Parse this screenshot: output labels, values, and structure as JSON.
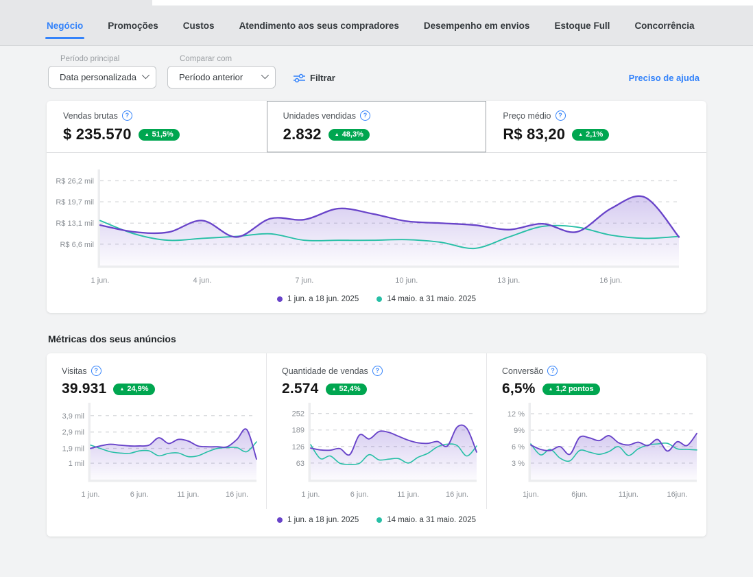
{
  "colors": {
    "purple": "#6843c9",
    "teal": "#27bfa6",
    "green": "#00a650",
    "blue": "#3483fa"
  },
  "icons": {
    "up_arrow": "▲",
    "help": "?"
  },
  "tabs": [
    {
      "label": "Negócio",
      "active": true
    },
    {
      "label": "Promoções",
      "active": false
    },
    {
      "label": "Custos",
      "active": false
    },
    {
      "label": "Atendimento aos seus compradores",
      "active": false
    },
    {
      "label": "Desempenho em envios",
      "active": false
    },
    {
      "label": "Estoque Full",
      "active": false
    },
    {
      "label": "Concorrência",
      "active": false
    }
  ],
  "filters": {
    "period_label": "Período principal",
    "period_value": "Data personalizada",
    "compare_label": "Comparar com",
    "compare_value": "Período anterior",
    "filter_button": "Filtrar",
    "help_link": "Preciso de ajuda"
  },
  "summary": {
    "metrics": [
      {
        "label": "Vendas brutas",
        "value": "$ 235.570",
        "badge": "51,5%",
        "selected": false
      },
      {
        "label": "Unidades vendidas",
        "value": "2.832",
        "badge": "48,3%",
        "selected": true
      },
      {
        "label": "Preço médio",
        "value": "R$ 83,20",
        "badge": "2,1%",
        "selected": false
      }
    ]
  },
  "legend": [
    {
      "label": "1 jun. a 18 jun. 2025",
      "color": "purple"
    },
    {
      "label": "14 maio. a 31 maio. 2025",
      "color": "teal"
    }
  ],
  "ads_section": {
    "title": "Métricas dos seus anúncios",
    "metrics": [
      {
        "label": "Visitas",
        "value": "39.931",
        "badge": "24,9%"
      },
      {
        "label": "Quantidade de vendas",
        "value": "2.574",
        "badge": "52,4%"
      },
      {
        "label": "Conversão",
        "value": "6,5%",
        "badge": "1,2 pontos"
      }
    ]
  },
  "chart_data": [
    {
      "type": "line",
      "title": "Vendas brutas por dia",
      "x_range": [
        1,
        18
      ],
      "x_unit": "dia de junho (período atual) / dia equivalente do período anterior",
      "ylim": [
        0,
        28
      ],
      "grid": true,
      "legend_position": "bottom",
      "yticks": [
        {
          "v": 6.6,
          "label": "R$ 6,6 mil"
        },
        {
          "v": 13.1,
          "label": "R$ 13,1 mil"
        },
        {
          "v": 19.7,
          "label": "R$ 19,7 mil"
        },
        {
          "v": 26.2,
          "label": "R$ 26,2 mil"
        }
      ],
      "xticks": [
        {
          "v": 1,
          "label": "1 jun."
        },
        {
          "v": 4,
          "label": "4 jun."
        },
        {
          "v": 7,
          "label": "7 jun."
        },
        {
          "v": 10,
          "label": "10 jun."
        },
        {
          "v": 13,
          "label": "13 jun."
        },
        {
          "v": 16,
          "label": "16 jun."
        }
      ],
      "series": [
        {
          "name": "1 jun. a 18 jun. 2025",
          "color": "#6843c9",
          "fill": true,
          "values": [
            12.5,
            10.4,
            10.3,
            13.9,
            8.8,
            14.5,
            14.2,
            17.6,
            16.0,
            13.7,
            13.1,
            12.5,
            11.1,
            12.9,
            10.4,
            17.6,
            21.1,
            8.8
          ]
        },
        {
          "name": "14 maio. a 31 maio. 2025",
          "color": "#27bfa6",
          "fill": false,
          "values": [
            13.9,
            9.8,
            7.8,
            8.4,
            9.0,
            9.8,
            7.8,
            7.8,
            7.8,
            8.0,
            7.2,
            5.3,
            8.8,
            12.1,
            11.9,
            9.4,
            8.4,
            9.0
          ]
        }
      ]
    },
    {
      "type": "line",
      "title": "Visitas",
      "x_range": [
        1,
        18
      ],
      "ylim": [
        0,
        4.35
      ],
      "grid": true,
      "yticks": [
        {
          "v": 1,
          "label": "1 mil"
        },
        {
          "v": 1.9,
          "label": "1,9 mil"
        },
        {
          "v": 2.9,
          "label": "2,9 mil"
        },
        {
          "v": 3.9,
          "label": "3,9 mil"
        }
      ],
      "xticks": [
        {
          "v": 1,
          "label": "1 jun."
        },
        {
          "v": 6,
          "label": "6 jun."
        },
        {
          "v": 11,
          "label": "11 jun."
        },
        {
          "v": 16,
          "label": "16 jun."
        }
      ],
      "series": [
        {
          "name": "1 jun. a 18 jun. 2025",
          "color": "#6843c9",
          "fill": true,
          "values": [
            1.9,
            2.05,
            2.15,
            2.1,
            2.05,
            2.05,
            2.1,
            2.55,
            2.2,
            2.45,
            2.35,
            2.05,
            2.0,
            2.0,
            2.0,
            2.45,
            3.05,
            1.25
          ]
        },
        {
          "name": "14 maio. a 31 maio. 2025",
          "color": "#27bfa6",
          "fill": false,
          "values": [
            2.1,
            1.9,
            1.7,
            1.62,
            1.6,
            1.75,
            1.75,
            1.45,
            1.6,
            1.62,
            1.4,
            1.45,
            1.7,
            1.9,
            1.95,
            1.95,
            1.7,
            2.3
          ]
        }
      ]
    },
    {
      "type": "line",
      "title": "Quantidade de vendas",
      "x_range": [
        1,
        18
      ],
      "ylim": [
        0,
        272
      ],
      "grid": true,
      "yticks": [
        {
          "v": 63,
          "label": "63"
        },
        {
          "v": 126,
          "label": "126"
        },
        {
          "v": 189,
          "label": "189"
        },
        {
          "v": 252,
          "label": "252"
        }
      ],
      "xticks": [
        {
          "v": 1,
          "label": "1 jun."
        },
        {
          "v": 6,
          "label": "6 jun."
        },
        {
          "v": 11,
          "label": "11 jun."
        },
        {
          "v": 16,
          "label": "16 jun."
        }
      ],
      "series": [
        {
          "name": "1 jun. a 18 jun. 2025",
          "color": "#6843c9",
          "fill": true,
          "values": [
            120,
            113,
            112,
            118,
            95,
            170,
            155,
            183,
            180,
            165,
            150,
            140,
            138,
            145,
            128,
            200,
            195,
            105
          ]
        },
        {
          "name": "14 maio. a 31 maio. 2025",
          "color": "#27bfa6",
          "fill": false,
          "values": [
            133,
            80,
            90,
            62,
            58,
            62,
            95,
            75,
            78,
            80,
            63,
            85,
            100,
            125,
            135,
            130,
            90,
            128
          ]
        }
      ]
    },
    {
      "type": "line",
      "title": "Conversão",
      "x_range": [
        1,
        18
      ],
      "ylim": [
        0,
        13
      ],
      "grid": true,
      "yticks": [
        {
          "v": 3,
          "label": "3 %"
        },
        {
          "v": 6,
          "label": "6 %"
        },
        {
          "v": 9,
          "label": "9%"
        },
        {
          "v": 12,
          "label": "12 %"
        }
      ],
      "xticks": [
        {
          "v": 1,
          "label": "1jun."
        },
        {
          "v": 6,
          "label": "6jun."
        },
        {
          "v": 11,
          "label": "11jun."
        },
        {
          "v": 16,
          "label": "16jun."
        }
      ],
      "series": [
        {
          "name": "1 jun. a 18 jun. 2025",
          "color": "#6843c9",
          "fill": true,
          "values": [
            6.3,
            5.5,
            5.3,
            6.0,
            4.6,
            7.7,
            7.6,
            7.1,
            8.0,
            6.7,
            6.3,
            6.8,
            6.2,
            7.3,
            5.2,
            6.9,
            6.2,
            8.4
          ]
        },
        {
          "name": "14 maio. a 31 maio. 2025",
          "color": "#27bfa6",
          "fill": false,
          "values": [
            6.5,
            4.5,
            5.5,
            3.9,
            3.4,
            5.3,
            5.0,
            4.6,
            5.1,
            6.0,
            4.4,
            5.6,
            6.3,
            6.5,
            6.6,
            5.6,
            5.5,
            5.4
          ]
        }
      ]
    }
  ]
}
